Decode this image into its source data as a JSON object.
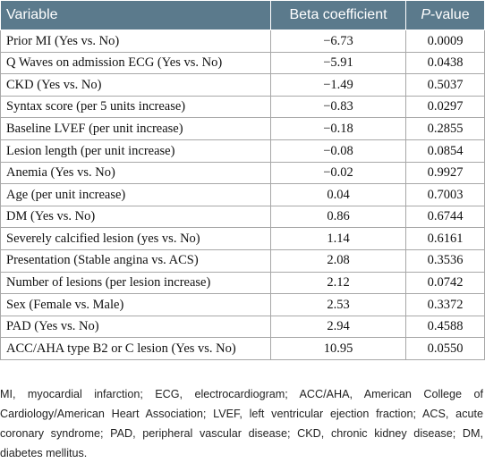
{
  "table": {
    "headers": {
      "variable": "Variable",
      "beta": "Beta coefficient",
      "p_italic": "P",
      "p_rest": "-value"
    },
    "rows": [
      {
        "variable": "Prior MI (Yes vs. No)",
        "beta": "−6.73",
        "p": "0.0009"
      },
      {
        "variable": "Q Waves on admission ECG (Yes vs. No)",
        "beta": "−5.91",
        "p": "0.0438"
      },
      {
        "variable": "CKD (Yes vs. No)",
        "beta": "−1.49",
        "p": "0.5037"
      },
      {
        "variable": "Syntax score (per 5 units increase)",
        "beta": "−0.83",
        "p": "0.0297"
      },
      {
        "variable": "Baseline LVEF (per unit increase)",
        "beta": "−0.18",
        "p": "0.2855"
      },
      {
        "variable": "Lesion length (per unit increase)",
        "beta": "−0.08",
        "p": "0.0854"
      },
      {
        "variable": "Anemia (Yes vs. No)",
        "beta": "−0.02",
        "p": "0.9927"
      },
      {
        "variable": "Age (per unit increase)",
        "beta": "0.04",
        "p": "0.7003"
      },
      {
        "variable": "DM (Yes vs. No)",
        "beta": "0.86",
        "p": "0.6744"
      },
      {
        "variable": "Severely calcified lesion (yes vs. No)",
        "beta": "1.14",
        "p": "0.6161"
      },
      {
        "variable": "Presentation (Stable angina vs. ACS)",
        "beta": "2.08",
        "p": "0.3536"
      },
      {
        "variable": "Number of lesions (per lesion increase)",
        "beta": "2.12",
        "p": "0.0742"
      },
      {
        "variable": "Sex (Female vs. Male)",
        "beta": "2.53",
        "p": "0.3372"
      },
      {
        "variable": "PAD (Yes vs. No)",
        "beta": "2.94",
        "p": "0.4588"
      },
      {
        "variable": "ACC/AHA type B2 or C lesion (Yes vs. No)",
        "beta": "10.95",
        "p": "0.0550"
      }
    ]
  },
  "footnote": "MI, myocardial infarction; ECG, electrocardiogram; ACC/AHA, American College of Cardiology/American Heart Association; LVEF, left ventricular ejection fraction; ACS, acute coronary syndrome; PAD, peripheral vascular disease; CKD, chronic kidney disease; DM, diabetes mellitus.",
  "colors": {
    "header_bg": "#5b7a8c",
    "header_text": "#ffffff",
    "border": "#a7a7a7"
  }
}
